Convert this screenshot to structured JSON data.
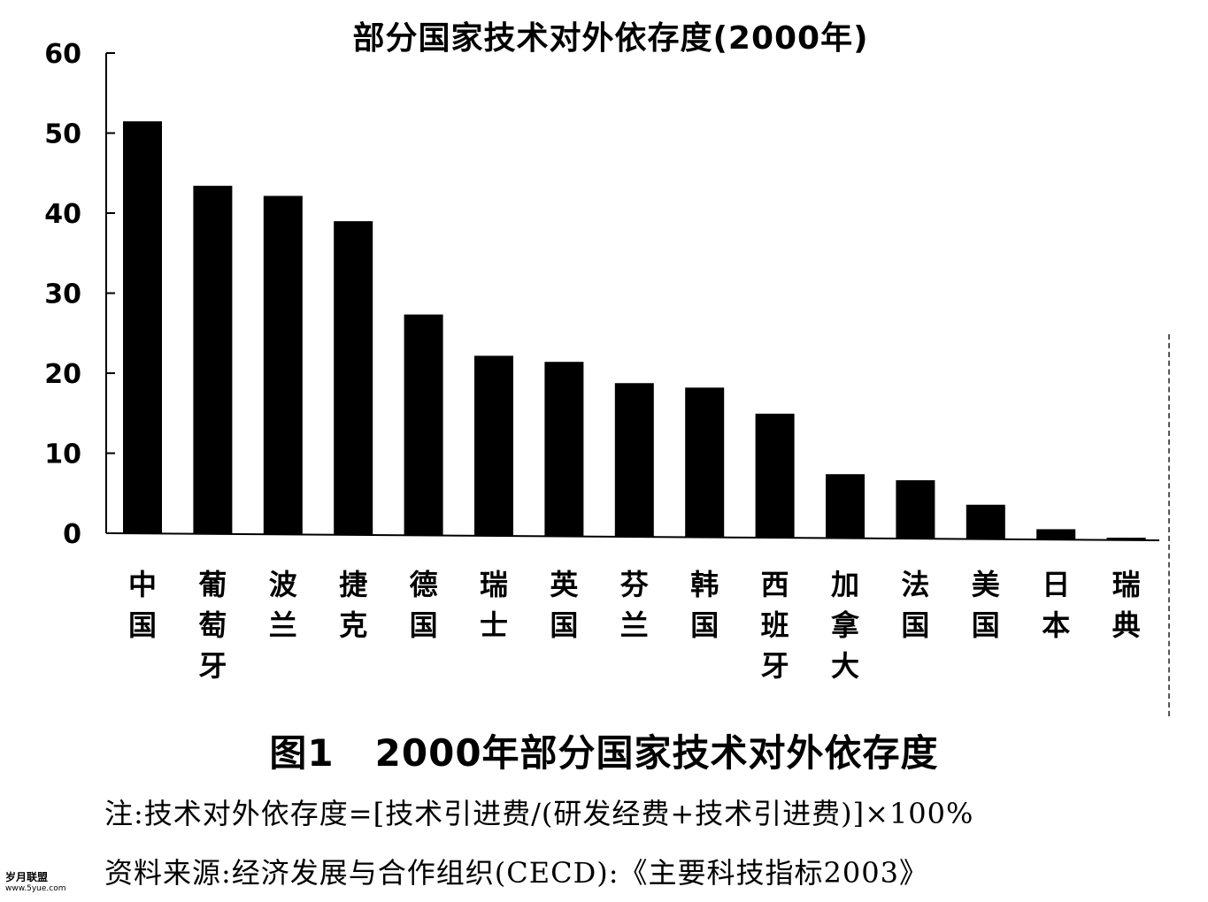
{
  "chart_data": {
    "type": "bar",
    "title": "部分国家技术对外依存度(2000年)",
    "categories": [
      "中国",
      "葡萄牙",
      "波兰",
      "捷克",
      "德国",
      "瑞士",
      "英国",
      "芬兰",
      "韩国",
      "西班牙",
      "加拿大",
      "法国",
      "美国",
      "日本",
      "瑞典"
    ],
    "values": [
      51.5,
      43.5,
      42.3,
      39.2,
      27.6,
      22.5,
      21.8,
      19.2,
      18.7,
      15.5,
      8.0,
      7.3,
      4.3,
      1.3,
      0.3
    ],
    "yticks": [
      "0",
      "10",
      "20",
      "30",
      "40",
      "50",
      "60"
    ],
    "ylim": [
      0,
      60
    ],
    "xlabel": "",
    "ylabel": "",
    "grid": false,
    "bar_color": "#000000"
  },
  "caption": {
    "number": "图1",
    "text": "2000年部分国家技术对外依存度"
  },
  "note": "注:技术对外依存度=[技术引进费/(研发经费+技术引进费)]×100%",
  "source": "资料来源:经济发展与合作组织(CECD):《主要科技指标2003》",
  "watermark": {
    "line1": "岁月联盟",
    "line2": "www.5yue.com"
  }
}
